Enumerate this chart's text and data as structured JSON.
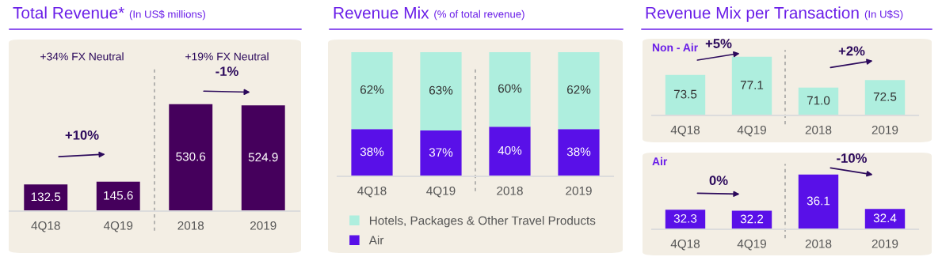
{
  "chart_data": [
    {
      "type": "bar",
      "title": "Total Revenue*",
      "subtitle": "(In US$ millions)",
      "categories": [
        "4Q18",
        "4Q19",
        "2018",
        "2019"
      ],
      "values": [
        132.5,
        145.6,
        530.6,
        524.9
      ],
      "color": "#45005c",
      "data_labels": true,
      "grid": false,
      "legend": false,
      "annotations": [
        "+34% FX Neutral",
        "+19% FX Neutral",
        "+10%",
        "-1%"
      ]
    },
    {
      "type": "bar",
      "title": "Revenue Mix",
      "subtitle": "(% of total revenue)",
      "categories": [
        "4Q18",
        "4Q19",
        "2018",
        "2019"
      ],
      "stacked": true,
      "grid": false,
      "legend": "bottom",
      "series": [
        {
          "name": "Air",
          "color": "#5910e8",
          "values": [
            38,
            37,
            40,
            38
          ],
          "value_labels": [
            "38%",
            "37%",
            "40%",
            "38%"
          ]
        },
        {
          "name": "Hotels, Packages & Other Travel Products",
          "color": "#aeeede",
          "values": [
            62,
            63,
            60,
            62
          ],
          "value_labels": [
            "62%",
            "63%",
            "60%",
            "62%"
          ]
        }
      ]
    },
    {
      "type": "bar",
      "title": "Revenue Mix per Transaction",
      "subtitle": "(In U$S)",
      "categories": [
        "4Q18",
        "4Q19",
        "2018",
        "2019"
      ],
      "values": [
        73.5,
        77.1,
        71.0,
        72.5
      ],
      "value_labels": [
        "73.5",
        "77.1",
        "71.0",
        "72.5"
      ],
      "color": "#aeeede",
      "ylim": [
        65.5,
        80.2
      ],
      "grid": false,
      "legend": false,
      "annotations": [
        "Non - Air",
        "+5%",
        "+2%"
      ]
    },
    {
      "type": "bar",
      "categories": [
        "4Q18",
        "4Q19",
        "2018",
        "2019"
      ],
      "values": [
        32.3,
        32.2,
        36.1,
        32.4
      ],
      "color": "#5910e8",
      "ylim": [
        30.2,
        38.2
      ],
      "data_labels": true,
      "grid": false,
      "legend": false,
      "annotations": [
        "Air",
        "0%",
        "-10%"
      ]
    }
  ]
}
